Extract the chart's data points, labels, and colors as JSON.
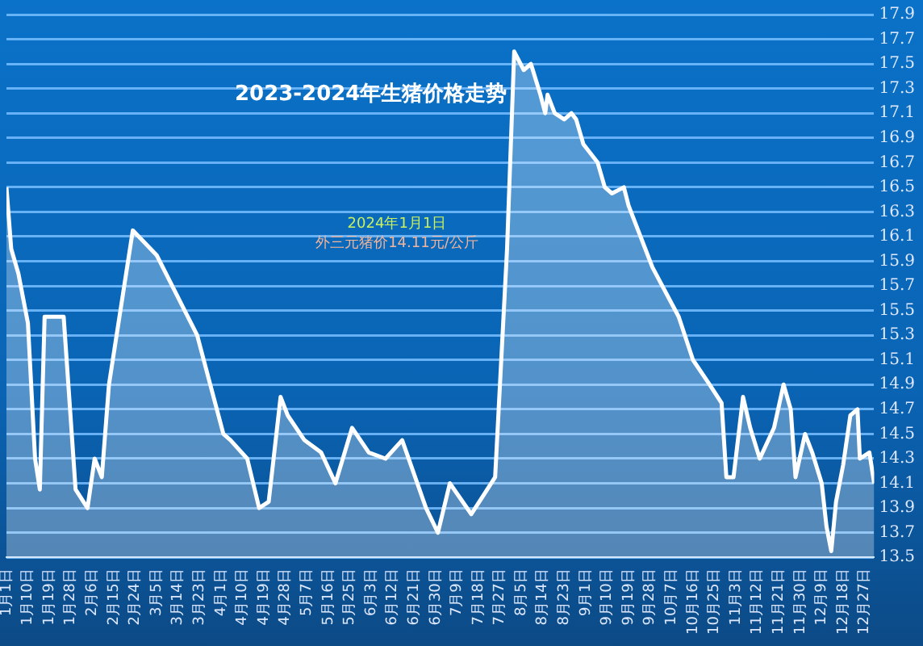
{
  "chart_data": {
    "type": "area",
    "title": "2023-2024年生猪价格走势",
    "annotations": [
      "2024年1月1日",
      "外三元猪价14.11元/公斤"
    ],
    "xlim": [
      "--01-01",
      "--12-31"
    ],
    "xticks": [
      {
        "value": "--01-01",
        "label": "1月1日"
      },
      {
        "value": "--01-10",
        "label": "1月10日"
      },
      {
        "value": "--01-19",
        "label": "1月19日"
      },
      {
        "value": "--01-28",
        "label": "1月28日"
      },
      {
        "value": "--02-06",
        "label": "2月6日"
      },
      {
        "value": "--02-15",
        "label": "2月15日"
      },
      {
        "value": "--02-24",
        "label": "2月24日"
      },
      {
        "value": "--03-05",
        "label": "3月5日"
      },
      {
        "value": "--03-14",
        "label": "3月14日"
      },
      {
        "value": "--03-23",
        "label": "3月23日"
      },
      {
        "value": "--04-01",
        "label": "4月1日"
      },
      {
        "value": "--04-10",
        "label": "4月10日"
      },
      {
        "value": "--04-19",
        "label": "4月19日"
      },
      {
        "value": "--04-28",
        "label": "4月28日"
      },
      {
        "value": "--05-07",
        "label": "5月7日"
      },
      {
        "value": "--05-16",
        "label": "5月16日"
      },
      {
        "value": "--05-25",
        "label": "5月25日"
      },
      {
        "value": "--06-03",
        "label": "6月3日"
      },
      {
        "value": "--06-12",
        "label": "6月12日"
      },
      {
        "value": "--06-21",
        "label": "6月21日"
      },
      {
        "value": "--06-30",
        "label": "6月30日"
      },
      {
        "value": "--07-09",
        "label": "7月9日"
      },
      {
        "value": "--07-18",
        "label": "7月18日"
      },
      {
        "value": "--07-27",
        "label": "7月27日"
      },
      {
        "value": "--08-05",
        "label": "8月5日"
      },
      {
        "value": "--08-14",
        "label": "8月14日"
      },
      {
        "value": "--08-23",
        "label": "8月23日"
      },
      {
        "value": "--09-01",
        "label": "9月1日"
      },
      {
        "value": "--09-10",
        "label": "9月10日"
      },
      {
        "value": "--09-19",
        "label": "9月19日"
      },
      {
        "value": "--09-28",
        "label": "9月28日"
      },
      {
        "value": "--10-07",
        "label": "10月7日"
      },
      {
        "value": "--10-16",
        "label": "10月16日"
      },
      {
        "value": "--10-25",
        "label": "10月25日"
      },
      {
        "value": "--11-03",
        "label": "11月3日"
      },
      {
        "value": "--11-12",
        "label": "11月12日"
      },
      {
        "value": "--11-21",
        "label": "11月21日"
      },
      {
        "value": "--11-30",
        "label": "11月30日"
      },
      {
        "value": "--12-09",
        "label": "12月9日"
      },
      {
        "value": "--12-18",
        "label": "12月18日"
      },
      {
        "value": "--12-27",
        "label": "12月27日"
      }
    ],
    "ylim": [
      13.5,
      17.9
    ],
    "yticks": [
      13.5,
      13.7,
      13.9,
      14.1,
      14.3,
      14.5,
      14.7,
      14.9,
      15.1,
      15.3,
      15.5,
      15.7,
      15.9,
      16.1,
      16.3,
      16.5,
      16.7,
      16.9,
      17.1,
      17.3,
      17.5,
      17.7,
      17.9
    ],
    "grid": "y",
    "legend": false,
    "marker": "none",
    "line_style": "solid",
    "x": [
      "--01-01",
      "--01-03",
      "--01-06",
      "--01-10",
      "--01-13",
      "--01-15",
      "--01-17",
      "--01-25",
      "--01-30",
      "--02-04",
      "--02-07",
      "--02-10",
      "--02-13",
      "--02-23",
      "--03-05",
      "--03-22",
      "--04-02",
      "--04-05",
      "--04-12",
      "--04-17",
      "--04-21",
      "--04-26",
      "--04-29",
      "--05-06",
      "--05-13",
      "--05-19",
      "--05-26",
      "--06-02",
      "--06-09",
      "--06-16",
      "--06-26",
      "--07-01",
      "--07-06",
      "--07-15",
      "--07-20",
      "--07-25",
      "--07-30",
      "--08-02",
      "--08-06",
      "--08-09",
      "--08-13",
      "--08-15",
      "--08-16",
      "--08-19",
      "--08-23",
      "--08-26",
      "--08-28",
      "--08-31",
      "--09-06",
      "--09-09",
      "--09-12",
      "--09-17",
      "--09-19",
      "--09-23",
      "--09-26",
      "--09-29",
      "--10-10",
      "--10-16",
      "--10-23",
      "--10-28",
      "--10-30",
      "--11-02",
      "--11-06",
      "--11-09",
      "--11-13",
      "--11-19",
      "--11-23",
      "--11-26",
      "--11-28",
      "--12-02",
      "--12-05",
      "--12-09",
      "--12-11",
      "--12-13",
      "--12-15",
      "--12-18",
      "--12-21",
      "--12-24",
      "--12-25",
      "--12-29",
      "--12-31"
    ],
    "series": [
      {
        "color": "#ffffff",
        "values": [
          16.5,
          16.0,
          15.8,
          15.4,
          14.3,
          14.05,
          15.45,
          15.45,
          14.05,
          13.9,
          14.3,
          14.15,
          14.9,
          16.15,
          15.95,
          15.3,
          14.5,
          14.45,
          14.3,
          13.9,
          13.95,
          14.8,
          14.65,
          14.45,
          14.35,
          14.1,
          14.55,
          14.35,
          14.3,
          14.45,
          13.9,
          13.7,
          14.1,
          13.85,
          14.0,
          14.15,
          16.0,
          17.6,
          17.45,
          17.5,
          17.25,
          17.1,
          17.25,
          17.1,
          17.05,
          17.1,
          17.05,
          16.85,
          16.7,
          16.5,
          16.45,
          16.5,
          16.35,
          16.15,
          16.0,
          15.85,
          15.45,
          15.1,
          14.9,
          14.75,
          14.15,
          14.15,
          14.8,
          14.55,
          14.3,
          14.55,
          14.9,
          14.7,
          14.15,
          14.5,
          14.35,
          14.1,
          13.75,
          13.55,
          13.95,
          14.25,
          14.65,
          14.7,
          14.3,
          14.35,
          14.1
        ]
      }
    ]
  }
}
